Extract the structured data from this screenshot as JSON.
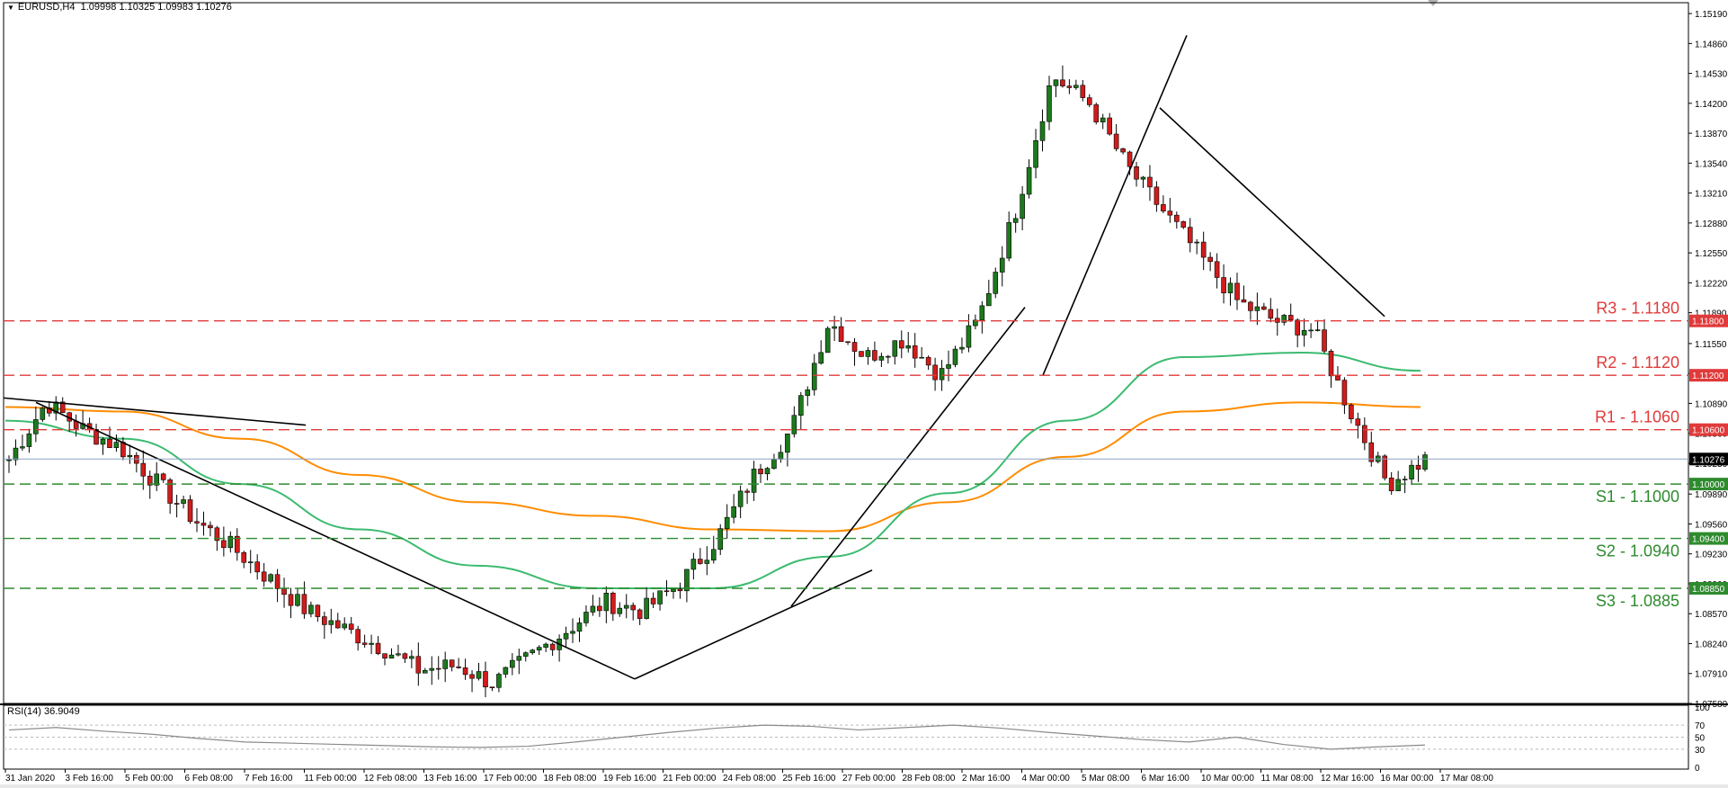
{
  "window": {
    "symbol_label": "EURUSD,H4",
    "ohlc_label": "1.09998 1.10325 1.09983 1.10276",
    "rsi_label": "RSI(14) 36.9049"
  },
  "colors": {
    "bull": "#1c7a1c",
    "bear": "#d01c1c",
    "ma_green": "#3cbb70",
    "ma_orange": "#ff8c00",
    "resistance": "#e03a3a",
    "support": "#2e8b2e",
    "current_line": "#8aa3c2",
    "rsi_line": "#8a8a8a"
  },
  "chart_data": [
    {
      "type": "candlestick",
      "title": "EURUSD,H4",
      "ylim": [
        1.0758,
        1.1528
      ],
      "y_ticks": [
        "1.15190",
        "1.14860",
        "1.14530",
        "1.14200",
        "1.13870",
        "1.13540",
        "1.13210",
        "1.12880",
        "1.12550",
        "1.12220",
        "1.11890",
        "1.11550",
        "1.11220",
        "1.10890",
        "1.10560",
        "1.10230",
        "1.09890",
        "1.09560",
        "1.09230",
        "1.08900",
        "1.08570",
        "1.08240",
        "1.07910",
        "1.07580"
      ],
      "x_ticks": [
        "31 Jan 2020",
        "3 Feb 16:00",
        "5 Feb 00:00",
        "6 Feb 08:00",
        "7 Feb 16:00",
        "11 Feb 00:00",
        "12 Feb 08:00",
        "13 Feb 16:00",
        "17 Feb 00:00",
        "18 Feb 08:00",
        "19 Feb 16:00",
        "21 Feb 00:00",
        "24 Feb 08:00",
        "25 Feb 16:00",
        "27 Feb 00:00",
        "28 Feb 08:00",
        "2 Mar 16:00",
        "4 Mar 00:00",
        "5 Mar 08:00",
        "6 Mar 16:00",
        "10 Mar 00:00",
        "11 Mar 08:00",
        "12 Mar 16:00",
        "16 Mar 00:00",
        "17 Mar 08:00"
      ],
      "last_price": "1.10276",
      "levels": [
        {
          "label": "R3 - 1.1180",
          "price": 1.118,
          "tag": "1.11800",
          "kind": "resistance"
        },
        {
          "label": "R2 - 1.1120",
          "price": 1.112,
          "tag": "1.11200",
          "kind": "resistance"
        },
        {
          "label": "R1 - 1.1060",
          "price": 1.106,
          "tag": "1.10600",
          "kind": "resistance"
        },
        {
          "label": "S1 - 1.1000",
          "price": 1.1,
          "tag": "1.10000",
          "kind": "support"
        },
        {
          "label": "S2 - 1.0940",
          "price": 1.094,
          "tag": "1.09400",
          "kind": "support"
        },
        {
          "label": "S3 - 1.0885",
          "price": 1.0885,
          "tag": "1.08850",
          "kind": "support"
        }
      ],
      "key_closes": [
        1.1027,
        1.109,
        1.106,
        1.104,
        1.1,
        1.096,
        1.093,
        1.0895,
        1.086,
        1.084,
        1.082,
        1.0795,
        1.08,
        1.078,
        1.081,
        1.084,
        1.087,
        1.086,
        1.089,
        1.094,
        1.101,
        1.106,
        1.118,
        1.114,
        1.116,
        1.112,
        1.118,
        1.13,
        1.145,
        1.142,
        1.135,
        1.13,
        1.125,
        1.12,
        1.118,
        1.117,
        1.108,
        1.1,
        1.1027
      ],
      "ma_orange_key": [
        1.1085,
        1.108,
        1.105,
        1.101,
        1.098,
        1.0965,
        1.095,
        1.0948,
        1.098,
        1.103,
        1.108,
        1.109,
        1.1085
      ],
      "ma_green_key": [
        1.107,
        1.105,
        1.1,
        1.095,
        1.091,
        1.0885,
        1.0885,
        1.092,
        1.099,
        1.107,
        1.114,
        1.1145,
        1.1125
      ]
    },
    {
      "type": "line",
      "title": "RSI(14) 36.9049",
      "ylim": [
        0,
        100
      ],
      "y_ticks": [
        "100",
        "70",
        "50",
        "30",
        "0"
      ],
      "values": [
        62,
        66,
        60,
        55,
        48,
        42,
        40,
        38,
        36,
        34,
        33,
        35,
        42,
        50,
        58,
        65,
        70,
        68,
        62,
        66,
        70,
        65,
        58,
        52,
        46,
        42,
        50,
        38,
        30,
        34,
        36.9
      ]
    }
  ]
}
